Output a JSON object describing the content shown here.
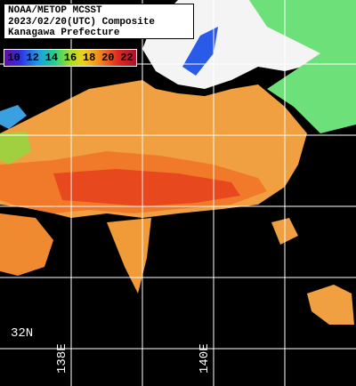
{
  "header": {
    "lines": [
      "NOAA/METOP MCSST",
      "2023/02/20(UTC) Composite",
      "Kanagawa Prefecture"
    ]
  },
  "scale": {
    "labels": [
      10,
      12,
      14,
      16,
      18,
      20,
      22
    ]
  },
  "grid": {
    "lat_labels": [
      "32N"
    ],
    "lon_labels": [
      "138E",
      "140E"
    ]
  }
}
